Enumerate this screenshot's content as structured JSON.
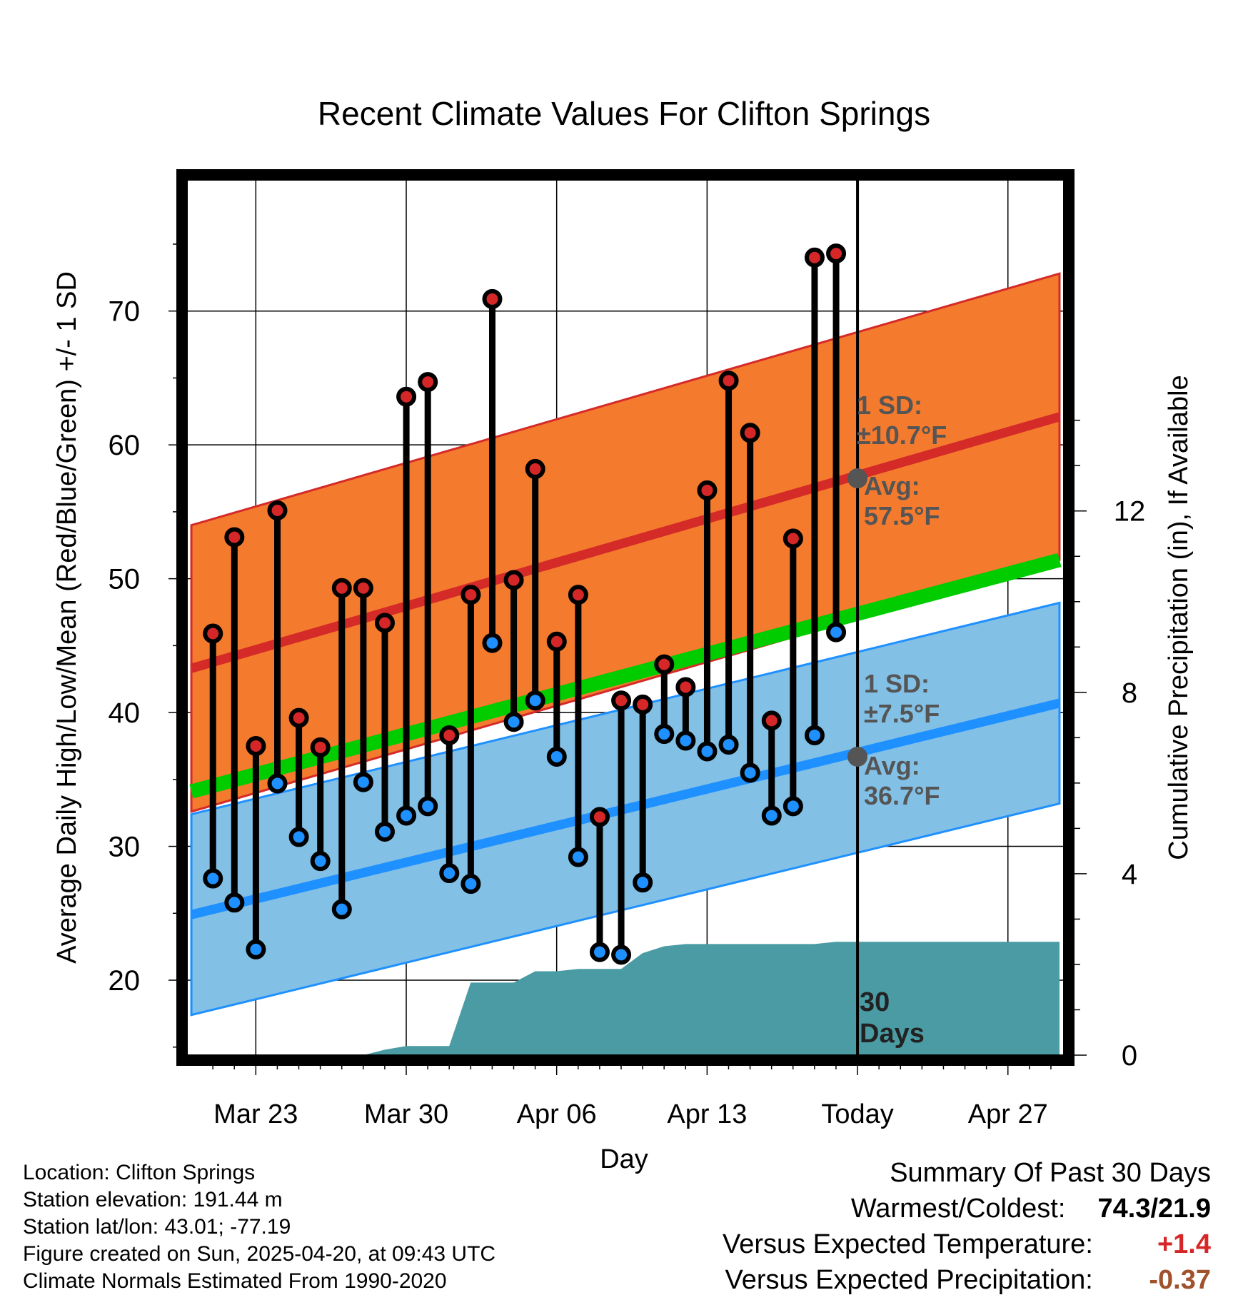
{
  "chart_data": {
    "type": "line",
    "title": "Recent Climate Values For Clifton Springs",
    "xlabel": "Day",
    "ylabel_left": "Average Daily High/Low/Mean (Red/Blue/Green) +/- 1 SD",
    "ylabel_right": "Cumulative Precipitation (in), If Available",
    "x_tick_labels": [
      {
        "day": 2,
        "label": "Mar 23"
      },
      {
        "day": 9,
        "label": "Mar 30"
      },
      {
        "day": 16,
        "label": "Apr 06"
      },
      {
        "day": 23,
        "label": "Apr 13"
      },
      {
        "day": 30,
        "label": "Today"
      },
      {
        "day": 37,
        "label": "Apr 27"
      }
    ],
    "x_range_day": [
      -1.2,
      39.6
    ],
    "ylim_temp": [
      14.4,
      79.8
    ],
    "y_ticks_temp": [
      20,
      30,
      40,
      50,
      60,
      70
    ],
    "ylim_precip": [
      0,
      19.3
    ],
    "y_ticks_precip": [
      0,
      4,
      8,
      12
    ],
    "grid": true,
    "series": [
      {
        "name": "Red",
        "x": [
          1,
          2,
          3,
          4,
          5,
          6,
          7,
          8,
          9,
          10,
          11,
          12,
          13,
          14,
          15,
          16,
          17,
          18,
          19,
          20,
          21,
          22,
          23,
          24,
          25,
          26,
          27,
          28,
          29
        ],
        "values": [
          45.9,
          53.1,
          37.5,
          55.1,
          39.6,
          37.4,
          49.3,
          49.3,
          46.7,
          63.6,
          64.7,
          38.3,
          48.8,
          70.9,
          49.9,
          58.2,
          45.3,
          48.8,
          32.2,
          40.9,
          40.6,
          43.6,
          41.9,
          56.6,
          64.8,
          60.9,
          39.4,
          53.0,
          74.0
        ]
      },
      {
        "name": "Blue",
        "x": [
          1,
          2,
          3,
          4,
          5,
          6,
          7,
          8,
          9,
          10,
          11,
          12,
          13,
          14,
          15,
          16,
          17,
          18,
          19,
          20,
          21,
          22,
          23,
          24,
          25,
          26,
          27,
          28,
          29
        ],
        "values": [
          27.6,
          25.8,
          22.3,
          34.7,
          30.7,
          28.9,
          25.3,
          34.8,
          31.1,
          32.3,
          33.0,
          28.0,
          27.2,
          45.2,
          39.3,
          40.9,
          36.7,
          29.2,
          22.1,
          21.9,
          27.3,
          38.4,
          37.9,
          37.1,
          37.6,
          35.5,
          32.3,
          33.0,
          38.3
        ]
      }
    ],
    "series_extra": {
      "x": 30,
      "high": 74.3,
      "low": 46.0
    },
    "normals": {
      "x_start": -1,
      "x_end": 39.4,
      "high_mean": [
        43.3,
        62.1
      ],
      "high_sd": 10.7,
      "low_mean": [
        24.9,
        40.7
      ],
      "low_sd": 7.5,
      "mean": [
        34.1,
        51.4
      ]
    },
    "precip": {
      "x": [
        -1,
        7,
        8,
        9,
        10,
        11,
        12,
        13,
        14,
        15,
        16,
        17,
        18,
        19,
        20,
        21,
        22,
        23,
        24,
        25,
        26,
        27,
        28,
        29,
        30,
        39.4
      ],
      "values": [
        0,
        0,
        0.12,
        0.2,
        0.2,
        0.2,
        1.6,
        1.6,
        1.6,
        1.85,
        1.85,
        1.9,
        1.9,
        1.9,
        2.25,
        2.4,
        2.45,
        2.45,
        2.45,
        2.45,
        2.45,
        2.45,
        2.45,
        2.5,
        2.5,
        2.5
      ]
    },
    "annotations": {
      "high_sd_label": "1 SD:",
      "high_sd_value": "±10.7°F",
      "high_avg_label": "Avg:",
      "high_avg_value": "57.5°F",
      "high_avg_point": 57.5,
      "low_sd_label": "1 SD:",
      "low_sd_value": "±7.5°F",
      "low_avg_label": "Avg:",
      "low_avg_value": "36.7°F",
      "low_avg_point": 36.7,
      "days_label_1": "30",
      "days_label_2": "Days",
      "today_day": 30
    },
    "colors": {
      "high_band": "#f47a2e",
      "high_line": "#d42a28",
      "low_band": "#82c0e6",
      "low_line": "#1e90ff",
      "mean_line": "#00cc00",
      "precip": "#4a9ba4",
      "red_point": "#d62728",
      "blue_point": "#1e90ff",
      "annotation": "#555555"
    }
  },
  "info": {
    "location": "Location: Clifton Springs",
    "elevation": "Station elevation: 191.44 m",
    "latlon": "Station lat/lon: 43.01; -77.19",
    "created": "Figure created on Sun, 2025-04-20, at 09:43 UTC",
    "normals": "Climate Normals Estimated From 1990-2020"
  },
  "summary": {
    "heading": "Summary Of Past 30 Days",
    "warm_cold_label": "Warmest/Coldest:",
    "warm_cold_value": "74.3/21.9",
    "temp_label": "Versus Expected Temperature:",
    "temp_value": "+1.4",
    "temp_color": "#d62728",
    "precip_label": "Versus Expected Precipitation:",
    "precip_value": "-0.37",
    "precip_color": "#a0522d"
  }
}
